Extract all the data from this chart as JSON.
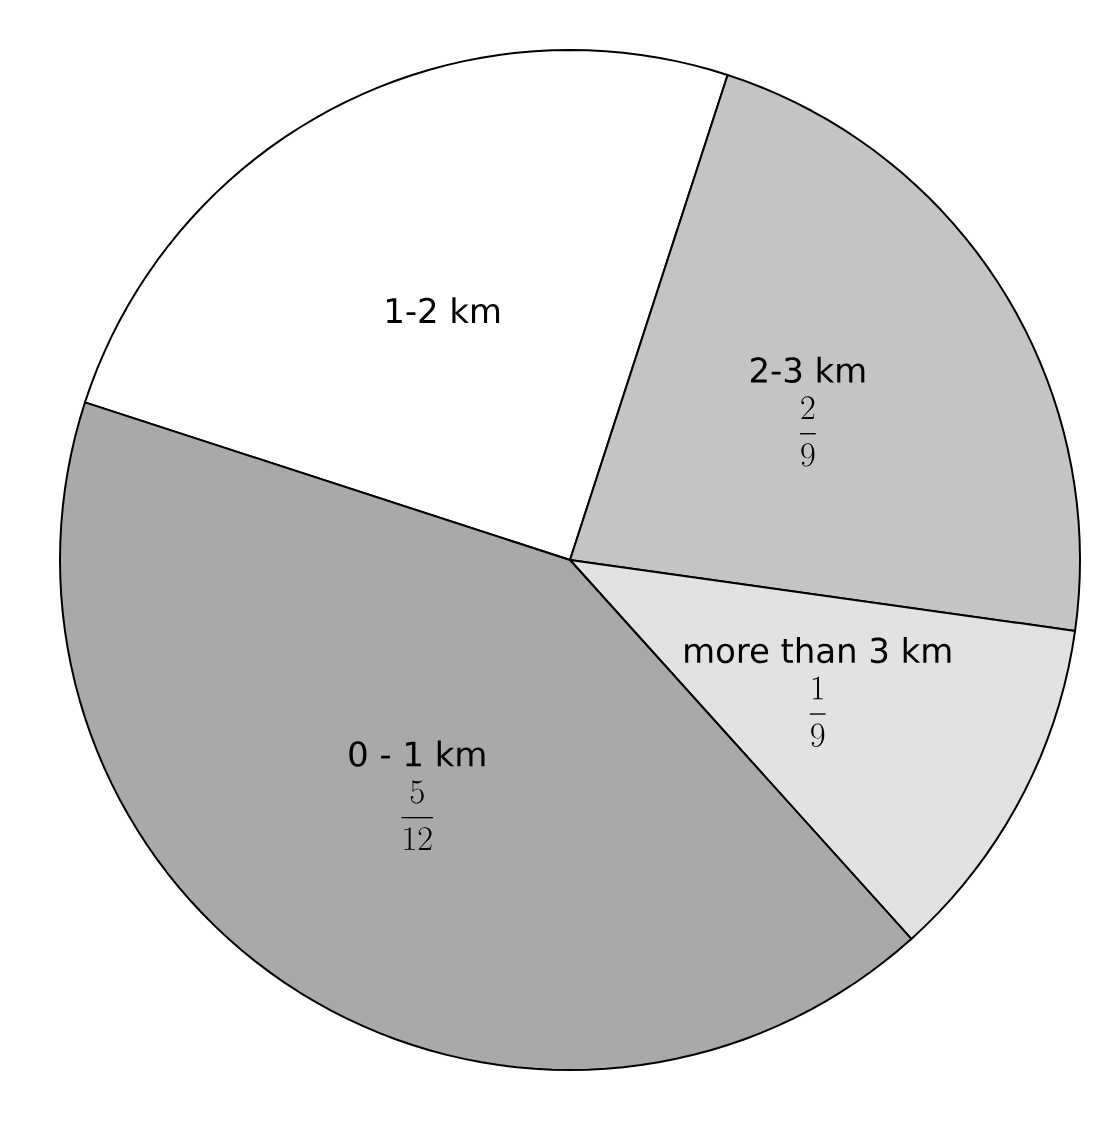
{
  "chart_data": {
    "type": "pie",
    "categories": [
      "1-2 km",
      "2-3 km",
      "more than 3 km",
      "0 - 1 km"
    ],
    "values": [
      25,
      22.22,
      11.11,
      41.67
    ],
    "colors": [
      "#ffffff",
      "#c4c4c4",
      "#e2e2e2",
      "#a9a9a9"
    ],
    "value_labels": [
      null,
      "\\frac{2}{9}",
      "\\frac{1}{9}",
      "\\frac{5}{12}"
    ]
  }
}
